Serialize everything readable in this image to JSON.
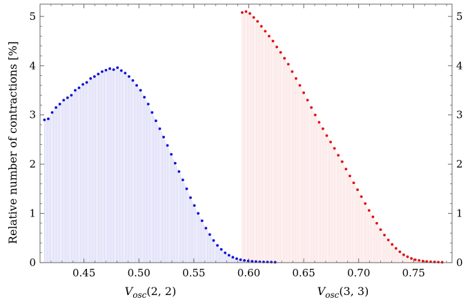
{
  "chart_data": {
    "type": "scatter",
    "ylabel": "Relative number of contractions [%]",
    "xlim": [
      0.41,
      0.785
    ],
    "ylim": [
      0,
      5.25
    ],
    "xticks": [
      "0.45",
      "0.50",
      "0.55",
      "0.60",
      "0.65",
      "0.70",
      "0.75"
    ],
    "yticks": [
      "0",
      "1",
      "2",
      "3",
      "4",
      "5"
    ],
    "grid": false,
    "x_labels": [
      {
        "func": "V",
        "sub": "osc",
        "args": "(2, 2)"
      },
      {
        "func": "V",
        "sub": "osc",
        "args": "(3, 3)"
      }
    ],
    "series": [
      {
        "color": "#1010d8",
        "fill_color": "#7d7de6",
        "points": [
          [
            0.414,
            2.9
          ],
          [
            0.4175,
            2.92
          ],
          [
            0.421,
            3.05
          ],
          [
            0.4245,
            3.15
          ],
          [
            0.428,
            3.22
          ],
          [
            0.4315,
            3.3
          ],
          [
            0.435,
            3.35
          ],
          [
            0.4385,
            3.4
          ],
          [
            0.442,
            3.5
          ],
          [
            0.4455,
            3.55
          ],
          [
            0.449,
            3.62
          ],
          [
            0.4525,
            3.66
          ],
          [
            0.456,
            3.74
          ],
          [
            0.4595,
            3.78
          ],
          [
            0.463,
            3.83
          ],
          [
            0.4665,
            3.88
          ],
          [
            0.47,
            3.91
          ],
          [
            0.4735,
            3.94
          ],
          [
            0.477,
            3.92
          ],
          [
            0.4805,
            3.96
          ],
          [
            0.484,
            3.9
          ],
          [
            0.4875,
            3.85
          ],
          [
            0.491,
            3.78
          ],
          [
            0.4945,
            3.7
          ],
          [
            0.498,
            3.6
          ],
          [
            0.5015,
            3.5
          ],
          [
            0.505,
            3.36
          ],
          [
            0.5085,
            3.22
          ],
          [
            0.512,
            3.05
          ],
          [
            0.5155,
            2.88
          ],
          [
            0.519,
            2.72
          ],
          [
            0.5225,
            2.55
          ],
          [
            0.526,
            2.38
          ],
          [
            0.5295,
            2.2
          ],
          [
            0.533,
            2.02
          ],
          [
            0.5365,
            1.85
          ],
          [
            0.54,
            1.68
          ],
          [
            0.5435,
            1.5
          ],
          [
            0.547,
            1.32
          ],
          [
            0.5505,
            1.16
          ],
          [
            0.554,
            1.0
          ],
          [
            0.5575,
            0.85
          ],
          [
            0.561,
            0.7
          ],
          [
            0.5645,
            0.57
          ],
          [
            0.568,
            0.45
          ],
          [
            0.5715,
            0.35
          ],
          [
            0.575,
            0.27
          ],
          [
            0.5785,
            0.2
          ],
          [
            0.582,
            0.15
          ],
          [
            0.5855,
            0.11
          ],
          [
            0.589,
            0.08
          ],
          [
            0.5925,
            0.06
          ],
          [
            0.596,
            0.045
          ],
          [
            0.5995,
            0.035
          ],
          [
            0.603,
            0.028
          ],
          [
            0.6065,
            0.022
          ],
          [
            0.61,
            0.018
          ],
          [
            0.6135,
            0.014
          ],
          [
            0.617,
            0.012
          ],
          [
            0.6205,
            0.01
          ],
          [
            0.624,
            0.008
          ]
        ]
      },
      {
        "color": "#e01010",
        "fill_color": "#f29a9a",
        "points": [
          [
            0.594,
            5.08
          ],
          [
            0.5975,
            5.1
          ],
          [
            0.601,
            5.06
          ],
          [
            0.6045,
            4.98
          ],
          [
            0.608,
            4.9
          ],
          [
            0.6115,
            4.8
          ],
          [
            0.615,
            4.7
          ],
          [
            0.6185,
            4.6
          ],
          [
            0.622,
            4.5
          ],
          [
            0.6255,
            4.38
          ],
          [
            0.629,
            4.27
          ],
          [
            0.6325,
            4.15
          ],
          [
            0.636,
            4.03
          ],
          [
            0.6395,
            3.88
          ],
          [
            0.643,
            3.74
          ],
          [
            0.6465,
            3.6
          ],
          [
            0.65,
            3.45
          ],
          [
            0.6535,
            3.3
          ],
          [
            0.657,
            3.15
          ],
          [
            0.6605,
            3.0
          ],
          [
            0.664,
            2.85
          ],
          [
            0.6675,
            2.72
          ],
          [
            0.671,
            2.58
          ],
          [
            0.6745,
            2.45
          ],
          [
            0.678,
            2.32
          ],
          [
            0.6815,
            2.18
          ],
          [
            0.685,
            2.05
          ],
          [
            0.6885,
            1.9
          ],
          [
            0.692,
            1.76
          ],
          [
            0.6955,
            1.62
          ],
          [
            0.699,
            1.48
          ],
          [
            0.7025,
            1.34
          ],
          [
            0.706,
            1.2
          ],
          [
            0.7095,
            1.06
          ],
          [
            0.713,
            0.93
          ],
          [
            0.7165,
            0.8
          ],
          [
            0.72,
            0.67
          ],
          [
            0.7235,
            0.56
          ],
          [
            0.727,
            0.46
          ],
          [
            0.7305,
            0.37
          ],
          [
            0.734,
            0.29
          ],
          [
            0.7375,
            0.22
          ],
          [
            0.741,
            0.16
          ],
          [
            0.7445,
            0.12
          ],
          [
            0.748,
            0.085
          ],
          [
            0.7515,
            0.06
          ],
          [
            0.755,
            0.045
          ],
          [
            0.7585,
            0.032
          ],
          [
            0.762,
            0.024
          ],
          [
            0.7655,
            0.018
          ],
          [
            0.769,
            0.013
          ],
          [
            0.7725,
            0.01
          ],
          [
            0.776,
            0.008
          ]
        ]
      }
    ]
  }
}
